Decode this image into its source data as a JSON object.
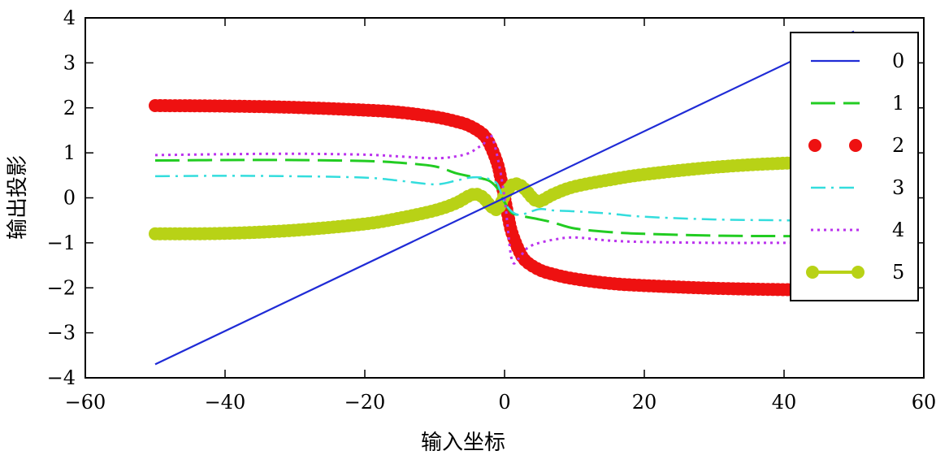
{
  "chart_data": {
    "type": "line",
    "title": "",
    "xlabel": "输入坐标",
    "ylabel": "输出投影",
    "xlim": [
      -60,
      60
    ],
    "ylim": [
      -4,
      4
    ],
    "xticks": [
      -60,
      -40,
      -20,
      0,
      20,
      40,
      60
    ],
    "yticks": [
      -4,
      -3,
      -2,
      -1,
      0,
      1,
      2,
      3,
      4
    ],
    "xtick_labels": [
      "−60",
      "−40",
      "−20",
      "0",
      "20",
      "40",
      "60"
    ],
    "ytick_labels": [
      "−4",
      "−3",
      "−2",
      "−1",
      "0",
      "1",
      "2",
      "3",
      "4"
    ],
    "grid": false,
    "legend_position": "top-right",
    "series": [
      {
        "name": "0",
        "color": "#1f2bd6",
        "style": "solid",
        "x": [
          -50,
          50
        ],
        "y": [
          -3.7,
          3.7
        ]
      },
      {
        "name": "1",
        "color": "#22cc22",
        "style": "dash",
        "x": [
          -50,
          -40,
          -30,
          -20,
          -15,
          -10,
          -7,
          -5,
          -3,
          -2,
          -1,
          0,
          1,
          2,
          3,
          5,
          7,
          10,
          15,
          20,
          30,
          40,
          50
        ],
        "y": [
          0.83,
          0.84,
          0.84,
          0.82,
          0.78,
          0.7,
          0.55,
          0.48,
          0.42,
          0.36,
          0.2,
          -0.1,
          -0.33,
          -0.38,
          -0.42,
          -0.48,
          -0.55,
          -0.68,
          -0.76,
          -0.8,
          -0.84,
          -0.85,
          -0.85
        ]
      },
      {
        "name": "2",
        "color": "#ee1111",
        "style": "dots",
        "x": [
          -50,
          -40,
          -30,
          -20,
          -15,
          -10,
          -7,
          -5,
          -3,
          -2,
          -1,
          -0.5,
          0,
          0.5,
          1,
          2,
          3,
          5,
          7,
          10,
          15,
          20,
          30,
          40,
          50
        ],
        "y": [
          2.05,
          2.04,
          2.01,
          1.95,
          1.9,
          1.8,
          1.7,
          1.6,
          1.4,
          1.15,
          0.75,
          0.4,
          0.0,
          -0.4,
          -0.75,
          -1.15,
          -1.4,
          -1.6,
          -1.7,
          -1.8,
          -1.9,
          -1.95,
          -2.01,
          -2.04,
          -2.05
        ]
      },
      {
        "name": "3",
        "color": "#33dddd",
        "style": "dashdot",
        "x": [
          -50,
          -40,
          -30,
          -20,
          -15,
          -10,
          -7,
          -5,
          -3,
          -2,
          -1,
          0,
          1,
          2,
          3,
          5,
          7,
          10,
          15,
          20,
          30,
          40,
          50
        ],
        "y": [
          0.48,
          0.49,
          0.48,
          0.45,
          0.38,
          0.3,
          0.38,
          0.45,
          0.45,
          0.4,
          0.3,
          -0.1,
          -0.3,
          -0.38,
          -0.35,
          -0.25,
          -0.28,
          -0.3,
          -0.35,
          -0.42,
          -0.48,
          -0.5,
          -0.52
        ]
      },
      {
        "name": "4",
        "color": "#bb33ee",
        "style": "dot",
        "x": [
          -50,
          -40,
          -30,
          -20,
          -15,
          -10,
          -7,
          -5,
          -4,
          -3,
          -2,
          -1,
          0,
          1,
          2,
          3,
          4,
          5,
          7,
          10,
          15,
          20,
          30,
          40,
          50
        ],
        "y": [
          0.95,
          0.97,
          0.98,
          0.96,
          0.92,
          0.88,
          0.92,
          1.0,
          1.1,
          1.2,
          1.4,
          0.9,
          0.0,
          -1.35,
          -1.35,
          -1.15,
          -1.05,
          -1.0,
          -0.93,
          -0.88,
          -0.95,
          -0.98,
          -1.0,
          -1.0,
          -1.0
        ]
      },
      {
        "name": "5",
        "color": "#b8d216",
        "style": "thick-dots",
        "x": [
          -50,
          -40,
          -30,
          -20,
          -15,
          -10,
          -7,
          -5,
          -4,
          -3,
          -2,
          -1,
          0,
          1,
          2,
          3,
          4,
          5,
          7,
          10,
          15,
          20,
          30,
          40,
          50
        ],
        "y": [
          -0.8,
          -0.79,
          -0.72,
          -0.58,
          -0.45,
          -0.28,
          -0.12,
          0.05,
          0.08,
          0.0,
          -0.18,
          -0.25,
          0.05,
          0.28,
          0.3,
          0.18,
          0.0,
          -0.08,
          0.08,
          0.25,
          0.4,
          0.52,
          0.68,
          0.77,
          0.8
        ]
      }
    ]
  }
}
